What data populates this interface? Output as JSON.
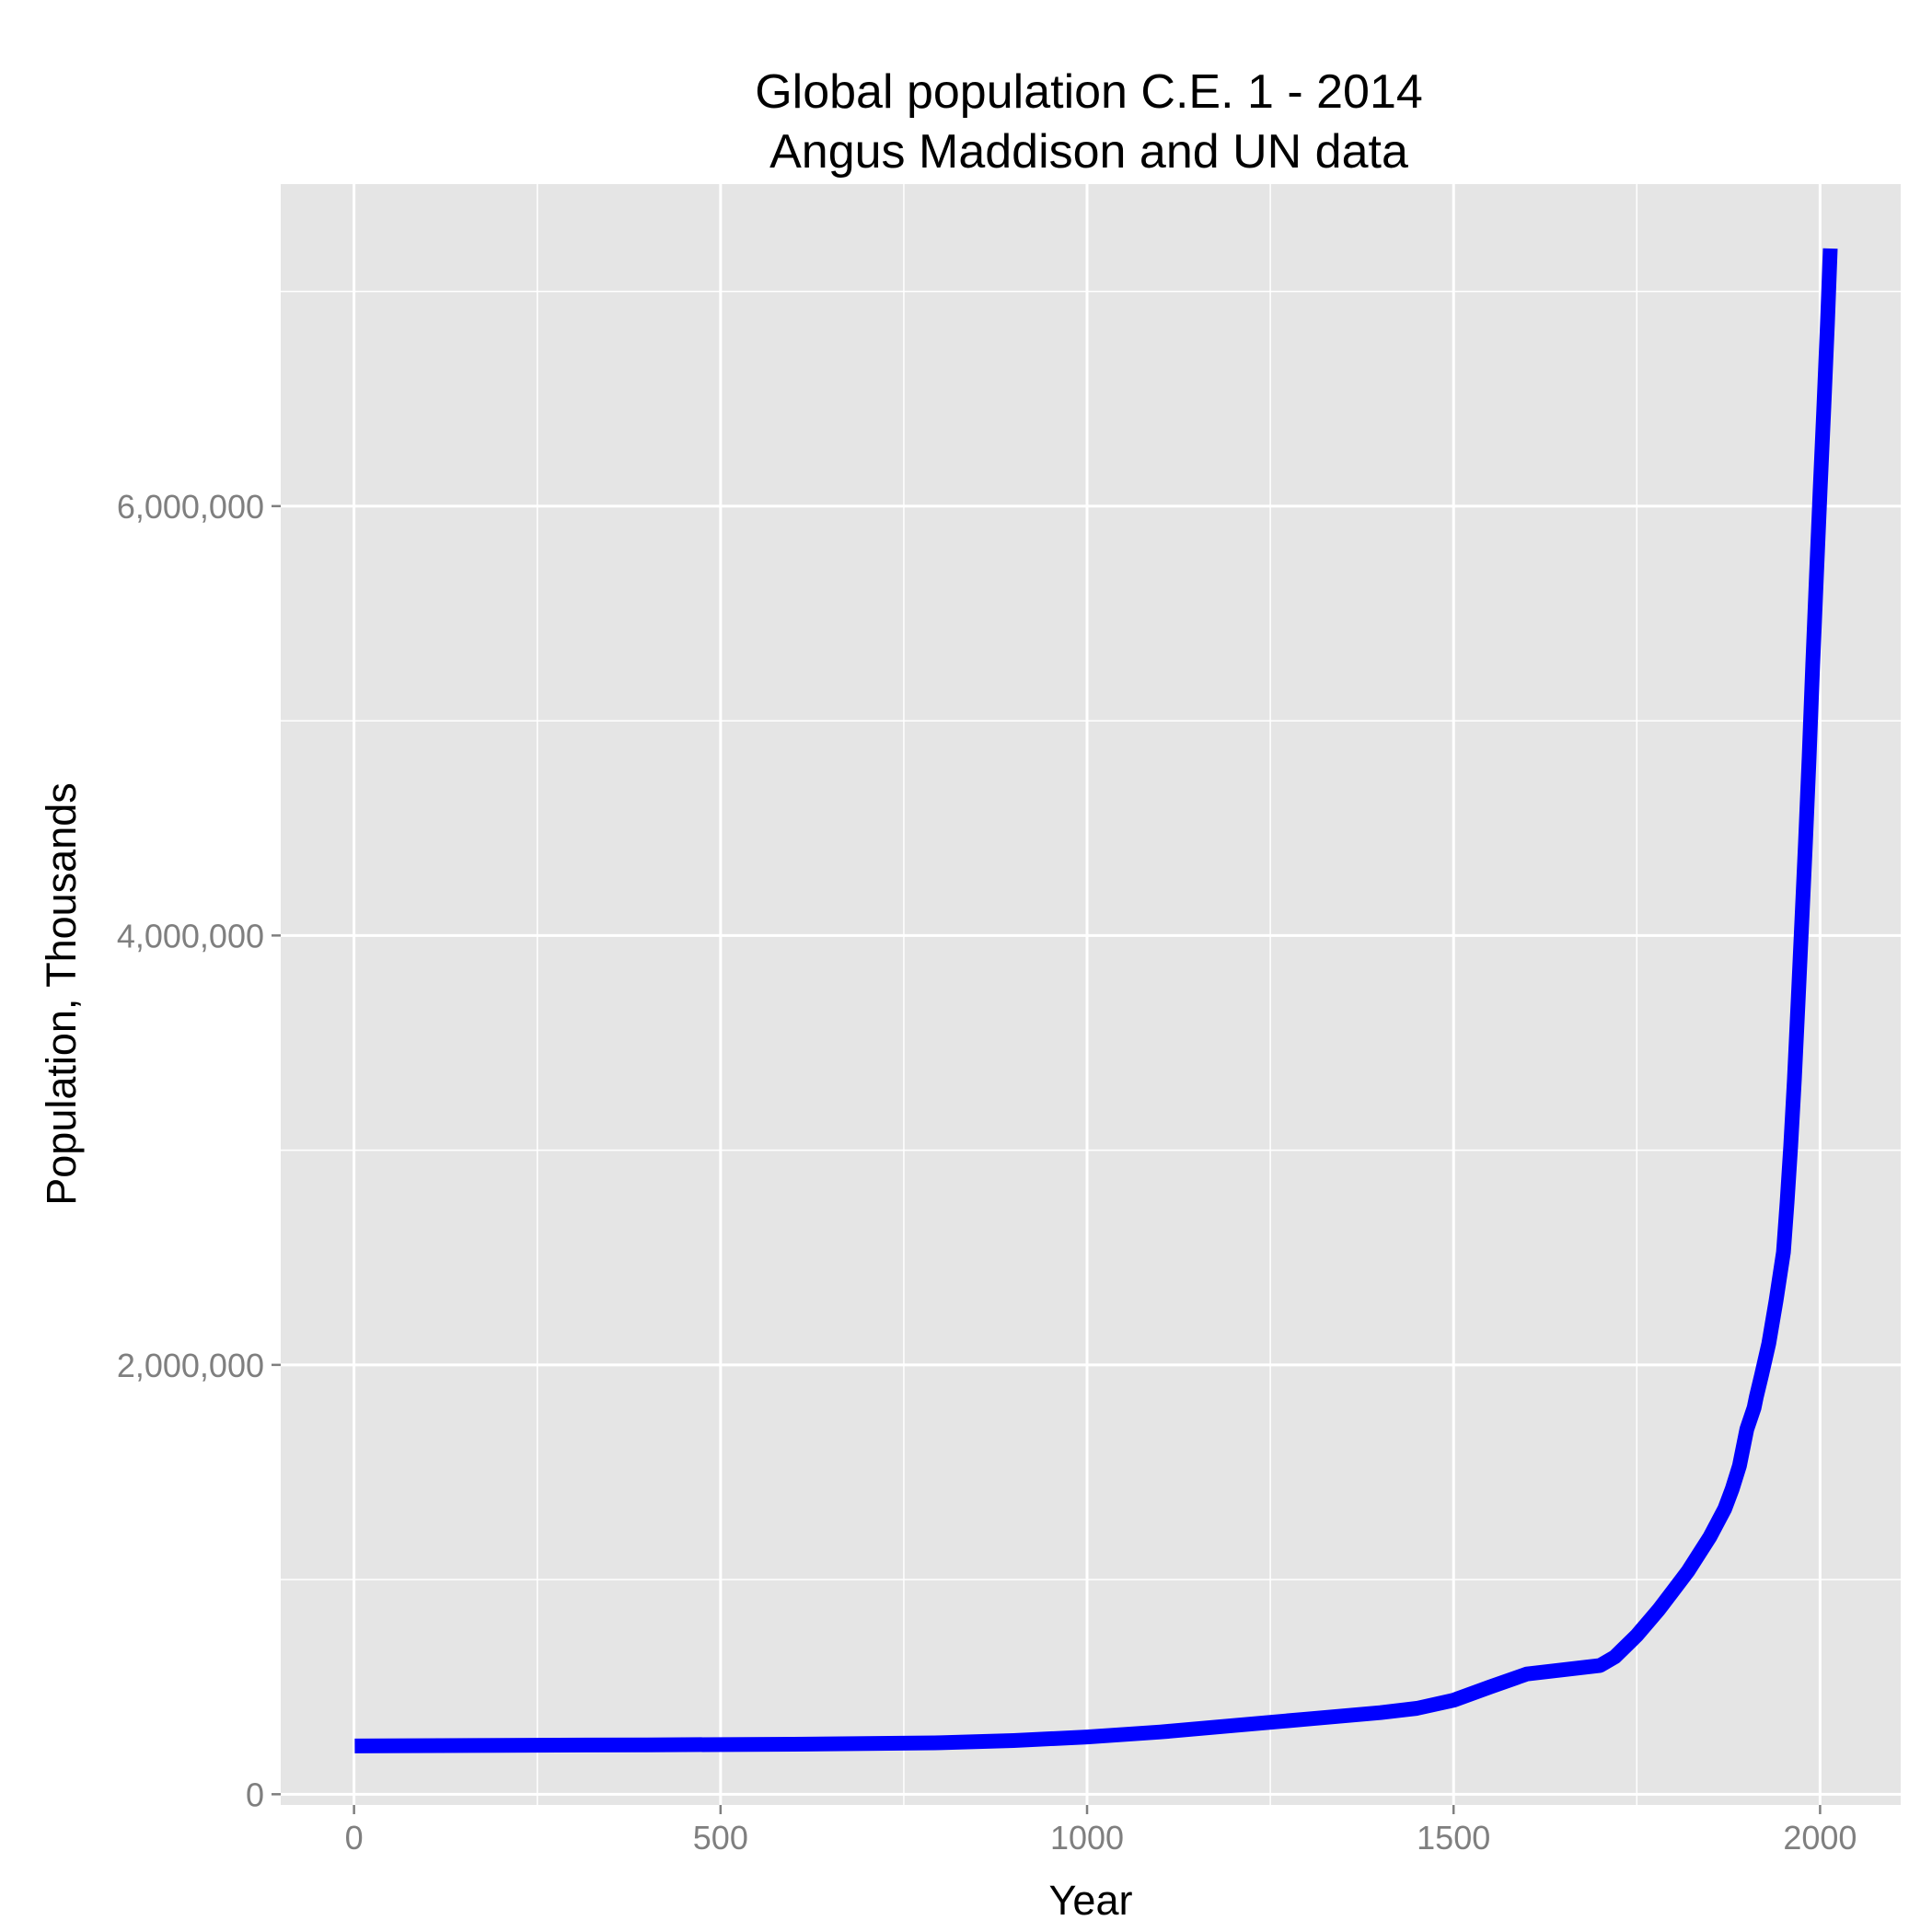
{
  "chart_data": {
    "type": "line",
    "title": "Global population C.E. 1 - 2014",
    "subtitle": "Angus Maddison and UN data",
    "xlabel": "Year",
    "ylabel": "Population, Thousands",
    "xlim": [
      -100,
      2110
    ],
    "ylim": [
      -50000,
      7500000
    ],
    "xticks": [
      0,
      500,
      1000,
      1500,
      2000
    ],
    "xtick_labels": [
      "0",
      "500",
      "1000",
      "1500",
      "2000"
    ],
    "yticks": [
      0,
      2000000,
      4000000,
      6000000
    ],
    "ytick_labels": [
      "0",
      "2,000,000",
      "4,000,000",
      "6,000,000"
    ],
    "grid": true,
    "legend": "none",
    "colors": {
      "panel": "#e5e5e5",
      "grid": "#ffffff",
      "line": "#0000ff"
    },
    "series": [
      {
        "x": [
          1,
          200,
          400,
          600,
          800,
          900,
          1000,
          1100,
          1200,
          1300,
          1400,
          1450,
          1500,
          1550,
          1600,
          1650,
          1700,
          1720,
          1750,
          1780,
          1800,
          1820,
          1850,
          1870,
          1880,
          1890,
          1900,
          1910,
          1913,
          1920,
          1930,
          1940,
          1950,
          1955,
          1960,
          1965,
          1970,
          1975,
          1980,
          1985,
          1990,
          1995,
          2000,
          2005,
          2010,
          2014
        ],
        "values": [
          225000,
          228000,
          230000,
          233000,
          240000,
          250000,
          267000,
          290000,
          320000,
          350000,
          380000,
          400000,
          438000,
          500000,
          560000,
          580000,
          600000,
          640000,
          740000,
          860000,
          950000,
          1040000,
          1200000,
          1330000,
          1420000,
          1530000,
          1700000,
          1800000,
          1850000,
          1950000,
          2100000,
          2300000,
          2525000,
          2760000,
          3020000,
          3330000,
          3690000,
          4060000,
          4430000,
          4830000,
          5260000,
          5670000,
          6070000,
          6450000,
          6850000,
          7200000
        ]
      }
    ]
  }
}
